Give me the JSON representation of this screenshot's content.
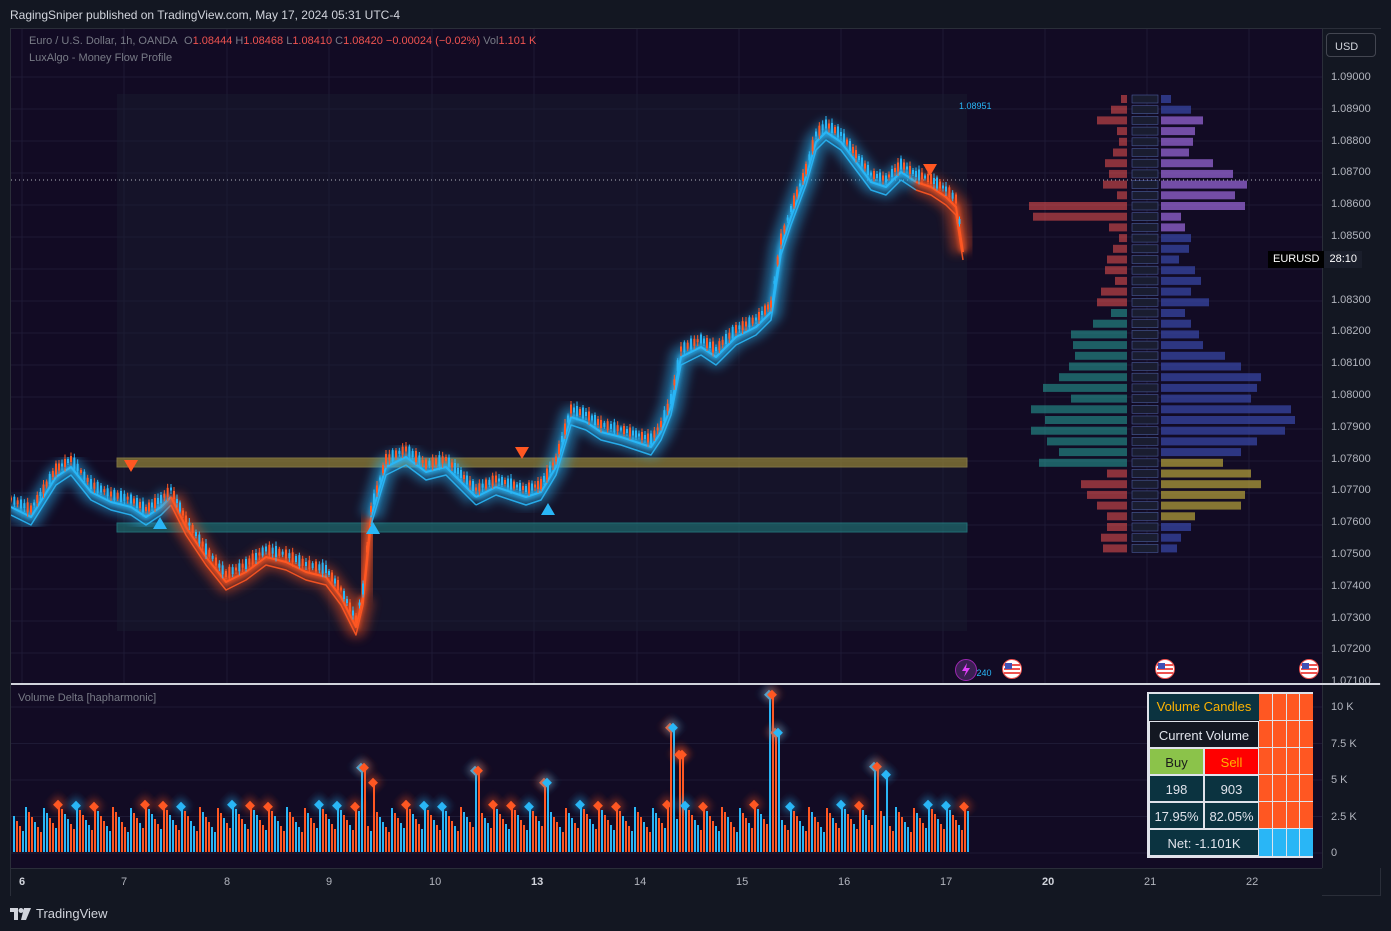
{
  "header": {
    "publisher": "RagingSniper published on TradingView.com, May 17, 2024 05:31 UTC-4"
  },
  "legend": {
    "symbol": "Euro / U.S. Dollar, 1h, OANDA",
    "o_key": "O",
    "o": "1.08444",
    "h_key": "H",
    "h": "1.08468",
    "l_key": "L",
    "l": "1.08410",
    "c_key": "C",
    "c": "1.08420",
    "change": "−0.00024 (−0.02%)",
    "vol_key": "Vol",
    "vol": "1.101 K",
    "indicator": "LuxAlgo - Money Flow Profile"
  },
  "currency_button": "USD",
  "price_axis": [
    "1.09000",
    "1.08900",
    "1.08800",
    "1.08700",
    "1.08600",
    "1.08500",
    "1.08300",
    "1.08200",
    "1.08100",
    "1.08000",
    "1.07900",
    "1.07800",
    "1.07700",
    "1.07600",
    "1.07500",
    "1.07400",
    "1.07300",
    "1.07200",
    "1.07100"
  ],
  "symbol_badge": {
    "symbol": "EURUSD",
    "timer": "28:10"
  },
  "range_labels": {
    "high": "1.08951",
    "low": "1.07240"
  },
  "volume_pane": {
    "title": "Volume Delta [hapharmonic]",
    "axis": [
      "10 K",
      "7.5 K",
      "5 K",
      "2.5 K",
      "0"
    ]
  },
  "volume_candles": {
    "title": "Volume Candles",
    "current_volume_label": "Current Volume",
    "buy_label": "Buy",
    "sell_label": "Sell",
    "buy_value": "198",
    "sell_value": "903",
    "buy_pct": "17.95%",
    "sell_pct": "82.05%",
    "net": "Net: -1.101K"
  },
  "time_axis": [
    {
      "label": "6",
      "bold": true
    },
    {
      "label": "7",
      "bold": false
    },
    {
      "label": "8",
      "bold": false
    },
    {
      "label": "9",
      "bold": false
    },
    {
      "label": "10",
      "bold": false
    },
    {
      "label": "13",
      "bold": true
    },
    {
      "label": "14",
      "bold": false
    },
    {
      "label": "15",
      "bold": false
    },
    {
      "label": "16",
      "bold": false
    },
    {
      "label": "17",
      "bold": false
    },
    {
      "label": "20",
      "bold": true
    },
    {
      "label": "21",
      "bold": false
    },
    {
      "label": "22",
      "bold": false
    }
  ],
  "footer": {
    "brand": "TradingView"
  },
  "colors": {
    "up": "#29b6f6",
    "down": "#ff5722",
    "background": "#120b24",
    "zone_upper": "#b8a43a",
    "zone_lower": "#1f7a7a"
  }
}
